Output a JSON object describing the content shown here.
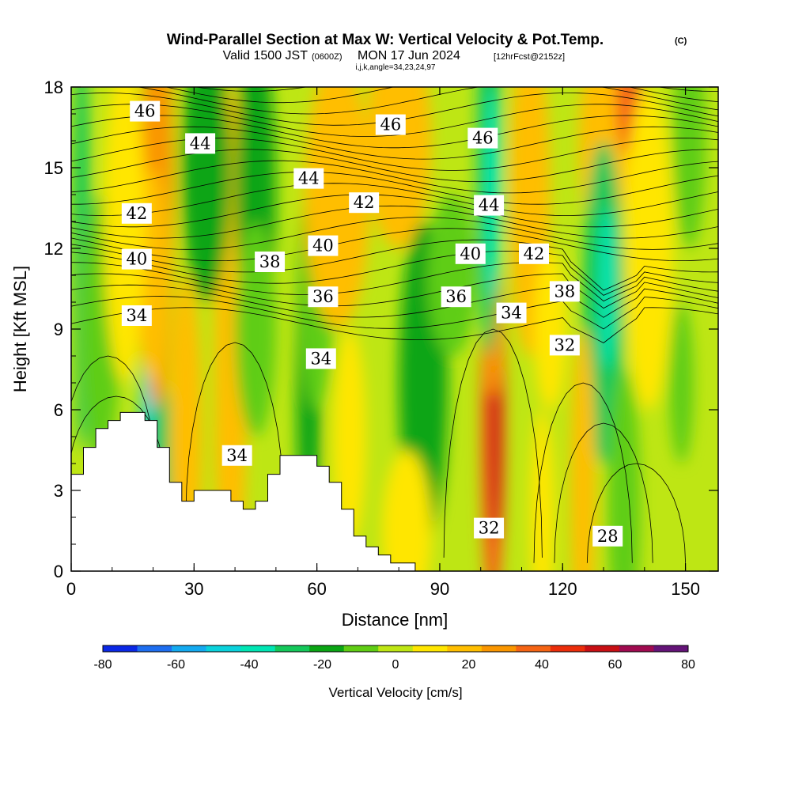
{
  "title": {
    "main": "Wind-Parallel Section at Max W: Vertical Velocity & Pot.Temp.",
    "copyright": "(C)",
    "valid_prefix": "Valid 1500 JST",
    "valid_utc": "(0600Z)",
    "valid_date": "MON 17 Jun 2024",
    "forecast": "[12hrFcst@2152z]",
    "indices": "i,j,k,angle=34,23,24,97"
  },
  "chart_data": {
    "type": "heatmap",
    "xlabel": "Distance [nm]",
    "ylabel": "Height [Kft MSL]",
    "xlim": [
      0,
      158
    ],
    "ylim": [
      0,
      18
    ],
    "x_ticks": [
      0,
      30,
      60,
      90,
      120,
      150
    ],
    "y_ticks": [
      0,
      3,
      6,
      9,
      12,
      15,
      18
    ],
    "colorbar": {
      "title": "Vertical Velocity [cm/s]",
      "levels": [
        -80,
        -70,
        -60,
        -50,
        -40,
        -30,
        -20,
        -10,
        0,
        10,
        20,
        30,
        40,
        50,
        60,
        70,
        80
      ],
      "tick_labels": [
        -80,
        -60,
        -40,
        -20,
        0,
        20,
        40,
        60,
        80
      ],
      "colors": [
        "#0a28e6",
        "#1e6ef0",
        "#14aaf0",
        "#0ad2dc",
        "#00e6b4",
        "#14c85a",
        "#0aa514",
        "#5fcd14",
        "#bee614",
        "#ffe600",
        "#ffbe00",
        "#fa9600",
        "#f56414",
        "#eb2d0a",
        "#c80f14",
        "#a00a50",
        "#641478"
      ]
    },
    "terrain_profile_kft": [
      [
        0,
        3.6
      ],
      [
        3,
        3.6
      ],
      [
        3,
        4.6
      ],
      [
        6,
        4.6
      ],
      [
        6,
        5.3
      ],
      [
        9,
        5.3
      ],
      [
        9,
        5.6
      ],
      [
        12,
        5.6
      ],
      [
        12,
        5.9
      ],
      [
        18,
        5.9
      ],
      [
        18,
        5.6
      ],
      [
        21,
        5.6
      ],
      [
        21,
        4.6
      ],
      [
        24,
        4.6
      ],
      [
        24,
        3.3
      ],
      [
        27,
        3.3
      ],
      [
        27,
        2.6
      ],
      [
        30,
        2.6
      ],
      [
        30,
        3.0
      ],
      [
        33,
        3.0
      ],
      [
        39,
        3.0
      ],
      [
        39,
        2.6
      ],
      [
        42,
        2.6
      ],
      [
        42,
        2.3
      ],
      [
        45,
        2.3
      ],
      [
        45,
        2.6
      ],
      [
        48,
        2.6
      ],
      [
        48,
        3.6
      ],
      [
        51,
        3.6
      ],
      [
        51,
        4.3
      ],
      [
        60,
        4.3
      ],
      [
        60,
        3.9
      ],
      [
        63,
        3.9
      ],
      [
        63,
        3.3
      ],
      [
        66,
        3.3
      ],
      [
        66,
        2.3
      ],
      [
        69,
        2.3
      ],
      [
        69,
        1.3
      ],
      [
        72,
        1.3
      ],
      [
        72,
        0.9
      ],
      [
        75,
        0.9
      ],
      [
        75,
        0.6
      ],
      [
        78,
        0.6
      ],
      [
        78,
        0.3
      ],
      [
        84,
        0.3
      ],
      [
        84,
        0
      ]
    ],
    "velocity_cells": [
      [
        2.5,
        12.5,
        2,
        8,
        -25
      ],
      [
        7,
        9,
        5,
        5,
        -10
      ],
      [
        20,
        5.5,
        3,
        4,
        -45
      ],
      [
        22,
        4,
        3,
        3,
        -30
      ],
      [
        21,
        14,
        4,
        8,
        35
      ],
      [
        20,
        11,
        4,
        4,
        20
      ],
      [
        28,
        5,
        4,
        6,
        20
      ],
      [
        39,
        8,
        4,
        10,
        25
      ],
      [
        38,
        5,
        3,
        4,
        20
      ],
      [
        33,
        15,
        6,
        5,
        -20
      ],
      [
        45,
        14,
        5,
        6,
        -15
      ],
      [
        58,
        7,
        3,
        7,
        -20
      ],
      [
        60,
        10,
        4,
        4,
        -10
      ],
      [
        65,
        14,
        8,
        5,
        20
      ],
      [
        80,
        16,
        8,
        4,
        20
      ],
      [
        86,
        7,
        6,
        6,
        -15
      ],
      [
        103,
        5.5,
        3,
        7,
        45
      ],
      [
        103.5,
        5.2,
        1.5,
        4,
        65
      ],
      [
        103,
        8.5,
        2,
        2,
        30
      ],
      [
        102,
        15,
        3,
        7,
        -25
      ],
      [
        103,
        14,
        2,
        4,
        -40
      ],
      [
        112,
        14,
        5,
        6,
        20
      ],
      [
        130,
        16,
        6,
        4,
        20
      ],
      [
        136,
        17.5,
        3,
        2,
        40
      ],
      [
        130,
        10,
        5,
        6,
        -25
      ],
      [
        131,
        10.5,
        2,
        3,
        -35
      ],
      [
        135,
        2.5,
        4,
        5,
        -10
      ],
      [
        149,
        7,
        3,
        3,
        -10
      ],
      [
        125,
        3,
        3,
        6,
        20
      ],
      [
        115,
        2,
        3,
        4,
        10
      ],
      [
        151,
        16,
        4,
        4,
        -10
      ],
      [
        82,
        1.5,
        6,
        3,
        10
      ],
      [
        68,
        5,
        4,
        4,
        10
      ],
      [
        13,
        13,
        5,
        6,
        10
      ],
      [
        45,
        9,
        5,
        4,
        -5
      ],
      [
        117,
        9,
        4,
        3,
        10
      ],
      [
        141,
        12,
        6,
        6,
        10
      ],
      [
        93,
        11,
        6,
        3,
        -10
      ]
    ],
    "theta_contour_labels": [
      {
        "value": "46",
        "x": 18,
        "y": 17.1
      },
      {
        "value": "46",
        "x": 78,
        "y": 16.6
      },
      {
        "value": "46",
        "x": 100.5,
        "y": 16.1
      },
      {
        "value": "44",
        "x": 31.5,
        "y": 15.9
      },
      {
        "value": "44",
        "x": 58,
        "y": 14.6
      },
      {
        "value": "44",
        "x": 102,
        "y": 13.6
      },
      {
        "value": "42",
        "x": 16,
        "y": 13.3
      },
      {
        "value": "42",
        "x": 71.5,
        "y": 13.7
      },
      {
        "value": "42",
        "x": 113,
        "y": 11.8
      },
      {
        "value": "40",
        "x": 16,
        "y": 11.6
      },
      {
        "value": "40",
        "x": 61.5,
        "y": 12.1
      },
      {
        "value": "40",
        "x": 97.5,
        "y": 11.8
      },
      {
        "value": "38",
        "x": 48.5,
        "y": 11.5
      },
      {
        "value": "38",
        "x": 120.5,
        "y": 10.4
      },
      {
        "value": "36",
        "x": 61.5,
        "y": 10.2
      },
      {
        "value": "36",
        "x": 94,
        "y": 10.2
      },
      {
        "value": "34",
        "x": 16,
        "y": 9.5
      },
      {
        "value": "34",
        "x": 61,
        "y": 7.9
      },
      {
        "value": "34",
        "x": 107.5,
        "y": 9.6
      },
      {
        "value": "34",
        "x": 40.5,
        "y": 4.3
      },
      {
        "value": "32",
        "x": 120.5,
        "y": 8.4
      },
      {
        "value": "32",
        "x": 102,
        "y": 1.6
      },
      {
        "value": "28",
        "x": 131,
        "y": 1.3
      }
    ]
  }
}
